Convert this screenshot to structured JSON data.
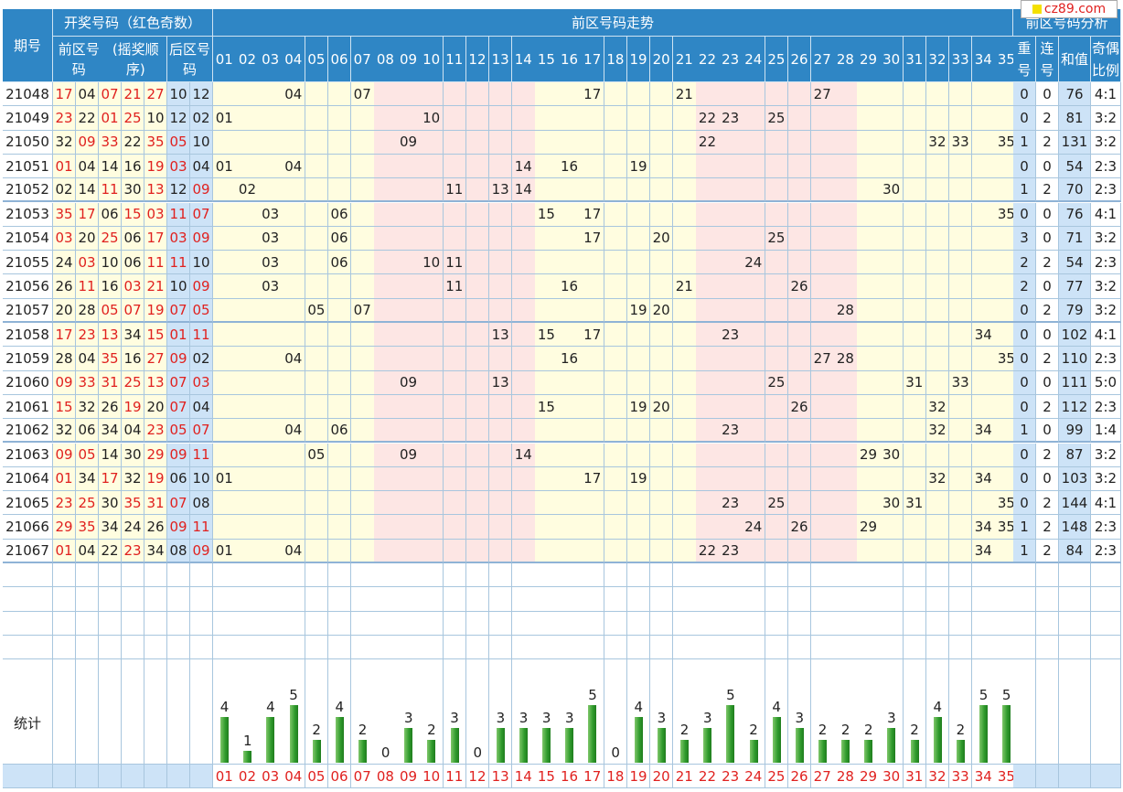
{
  "logo": {
    "text": "cz89.com"
  },
  "header": {
    "issue": "期号",
    "draw_numbers": "开奖号码（红色奇数）",
    "front_draw": "前区号码",
    "front_order": "(摇奖顺序)",
    "back_draw": "后区号码",
    "front_trend": "前区号码走势",
    "front_analysis": "前区号码分析",
    "repeat": "重号",
    "consecutive": "连号",
    "sum": "和值",
    "odd_even": "奇偶比例"
  },
  "columns": [
    "01",
    "02",
    "03",
    "04",
    "05",
    "06",
    "07",
    "08",
    "09",
    "10",
    "11",
    "12",
    "13",
    "14",
    "15",
    "16",
    "17",
    "18",
    "19",
    "20",
    "21",
    "22",
    "23",
    "24",
    "25",
    "26",
    "27",
    "28",
    "29",
    "30",
    "31",
    "32",
    "33",
    "34",
    "35"
  ],
  "rows": [
    {
      "issue": "21048",
      "front": [
        "17",
        "04",
        "07",
        "21",
        "27"
      ],
      "back": [
        "10",
        "12"
      ],
      "repeat": "0",
      "consecutive": "0",
      "sum": "76",
      "ratio": "4:1"
    },
    {
      "issue": "21049",
      "front": [
        "23",
        "22",
        "01",
        "25",
        "10"
      ],
      "back": [
        "12",
        "02"
      ],
      "repeat": "0",
      "consecutive": "2",
      "sum": "81",
      "ratio": "3:2"
    },
    {
      "issue": "21050",
      "front": [
        "32",
        "09",
        "33",
        "22",
        "35"
      ],
      "back": [
        "05",
        "10"
      ],
      "repeat": "1",
      "consecutive": "2",
      "sum": "131",
      "ratio": "3:2"
    },
    {
      "issue": "21051",
      "front": [
        "01",
        "04",
        "14",
        "16",
        "19"
      ],
      "back": [
        "03",
        "04"
      ],
      "repeat": "0",
      "consecutive": "0",
      "sum": "54",
      "ratio": "2:3"
    },
    {
      "issue": "21052",
      "front": [
        "02",
        "14",
        "11",
        "30",
        "13"
      ],
      "back": [
        "12",
        "09"
      ],
      "repeat": "1",
      "consecutive": "2",
      "sum": "70",
      "ratio": "2:3"
    },
    {
      "issue": "21053",
      "front": [
        "35",
        "17",
        "06",
        "15",
        "03"
      ],
      "back": [
        "11",
        "07"
      ],
      "repeat": "0",
      "consecutive": "0",
      "sum": "76",
      "ratio": "4:1"
    },
    {
      "issue": "21054",
      "front": [
        "03",
        "20",
        "25",
        "06",
        "17"
      ],
      "back": [
        "03",
        "09"
      ],
      "repeat": "3",
      "consecutive": "0",
      "sum": "71",
      "ratio": "3:2"
    },
    {
      "issue": "21055",
      "front": [
        "24",
        "03",
        "10",
        "06",
        "11"
      ],
      "back": [
        "11",
        "10"
      ],
      "repeat": "2",
      "consecutive": "2",
      "sum": "54",
      "ratio": "2:3"
    },
    {
      "issue": "21056",
      "front": [
        "26",
        "11",
        "16",
        "03",
        "21"
      ],
      "back": [
        "10",
        "09"
      ],
      "repeat": "2",
      "consecutive": "0",
      "sum": "77",
      "ratio": "3:2"
    },
    {
      "issue": "21057",
      "front": [
        "20",
        "28",
        "05",
        "07",
        "19"
      ],
      "back": [
        "07",
        "05"
      ],
      "repeat": "0",
      "consecutive": "2",
      "sum": "79",
      "ratio": "3:2"
    },
    {
      "issue": "21058",
      "front": [
        "17",
        "23",
        "13",
        "34",
        "15"
      ],
      "back": [
        "01",
        "11"
      ],
      "repeat": "0",
      "consecutive": "0",
      "sum": "102",
      "ratio": "4:1"
    },
    {
      "issue": "21059",
      "front": [
        "28",
        "04",
        "35",
        "16",
        "27"
      ],
      "back": [
        "09",
        "02"
      ],
      "repeat": "0",
      "consecutive": "2",
      "sum": "110",
      "ratio": "2:3"
    },
    {
      "issue": "21060",
      "front": [
        "09",
        "33",
        "31",
        "25",
        "13"
      ],
      "back": [
        "07",
        "03"
      ],
      "repeat": "0",
      "consecutive": "0",
      "sum": "111",
      "ratio": "5:0"
    },
    {
      "issue": "21061",
      "front": [
        "15",
        "32",
        "26",
        "19",
        "20"
      ],
      "back": [
        "07",
        "04"
      ],
      "repeat": "0",
      "consecutive": "2",
      "sum": "112",
      "ratio": "2:3"
    },
    {
      "issue": "21062",
      "front": [
        "32",
        "06",
        "34",
        "04",
        "23"
      ],
      "back": [
        "05",
        "07"
      ],
      "repeat": "1",
      "consecutive": "0",
      "sum": "99",
      "ratio": "1:4"
    },
    {
      "issue": "21063",
      "front": [
        "09",
        "05",
        "14",
        "30",
        "29"
      ],
      "back": [
        "09",
        "11"
      ],
      "repeat": "0",
      "consecutive": "2",
      "sum": "87",
      "ratio": "3:2"
    },
    {
      "issue": "21064",
      "front": [
        "01",
        "34",
        "17",
        "32",
        "19"
      ],
      "back": [
        "06",
        "10"
      ],
      "repeat": "0",
      "consecutive": "0",
      "sum": "103",
      "ratio": "3:2"
    },
    {
      "issue": "21065",
      "front": [
        "23",
        "25",
        "30",
        "35",
        "31"
      ],
      "back": [
        "07",
        "08"
      ],
      "repeat": "0",
      "consecutive": "2",
      "sum": "144",
      "ratio": "4:1"
    },
    {
      "issue": "21066",
      "front": [
        "29",
        "35",
        "34",
        "24",
        "26"
      ],
      "back": [
        "09",
        "11"
      ],
      "repeat": "1",
      "consecutive": "2",
      "sum": "148",
      "ratio": "2:3"
    },
    {
      "issue": "21067",
      "front": [
        "01",
        "04",
        "22",
        "23",
        "34"
      ],
      "back": [
        "08",
        "09"
      ],
      "repeat": "1",
      "consecutive": "2",
      "sum": "84",
      "ratio": "2:3"
    }
  ],
  "stats": {
    "label": "统计",
    "counts": [
      4,
      1,
      4,
      5,
      2,
      4,
      2,
      0,
      3,
      2,
      3,
      0,
      3,
      3,
      3,
      3,
      5,
      0,
      4,
      3,
      2,
      3,
      5,
      2,
      4,
      3,
      2,
      2,
      2,
      3,
      2,
      4,
      2,
      5,
      5
    ]
  },
  "colors": {
    "header_bg": "#2f86c5",
    "odd_red": "#e0211f",
    "zone_yellow": "#fffde0",
    "zone_pink": "#fde6e4",
    "analysis_blue": "#cde3f7",
    "bar_green": "#2f9a2c"
  }
}
